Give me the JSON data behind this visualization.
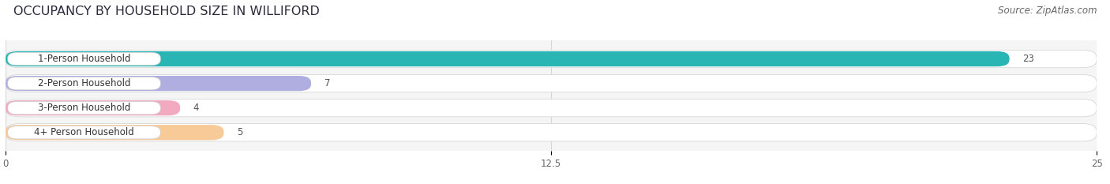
{
  "title": "OCCUPANCY BY HOUSEHOLD SIZE IN WILLIFORD",
  "source": "Source: ZipAtlas.com",
  "categories": [
    "1-Person Household",
    "2-Person Household",
    "3-Person Household",
    "4+ Person Household"
  ],
  "values": [
    23,
    7,
    4,
    5
  ],
  "bar_colors": [
    "#2ab5b5",
    "#b0aee0",
    "#f2aac0",
    "#f7ca98"
  ],
  "xlim": [
    0,
    25
  ],
  "xticks": [
    0,
    12.5,
    25
  ],
  "title_fontsize": 11.5,
  "label_fontsize": 8.5,
  "value_fontsize": 8.5,
  "source_fontsize": 8.5,
  "bg_color": "#ffffff",
  "plot_bg_color": "#f5f5f5",
  "bar_height": 0.62,
  "bar_bg_color": "#ebebeb",
  "label_tab_color": "#ffffff",
  "grid_color": "#d8d8d8"
}
